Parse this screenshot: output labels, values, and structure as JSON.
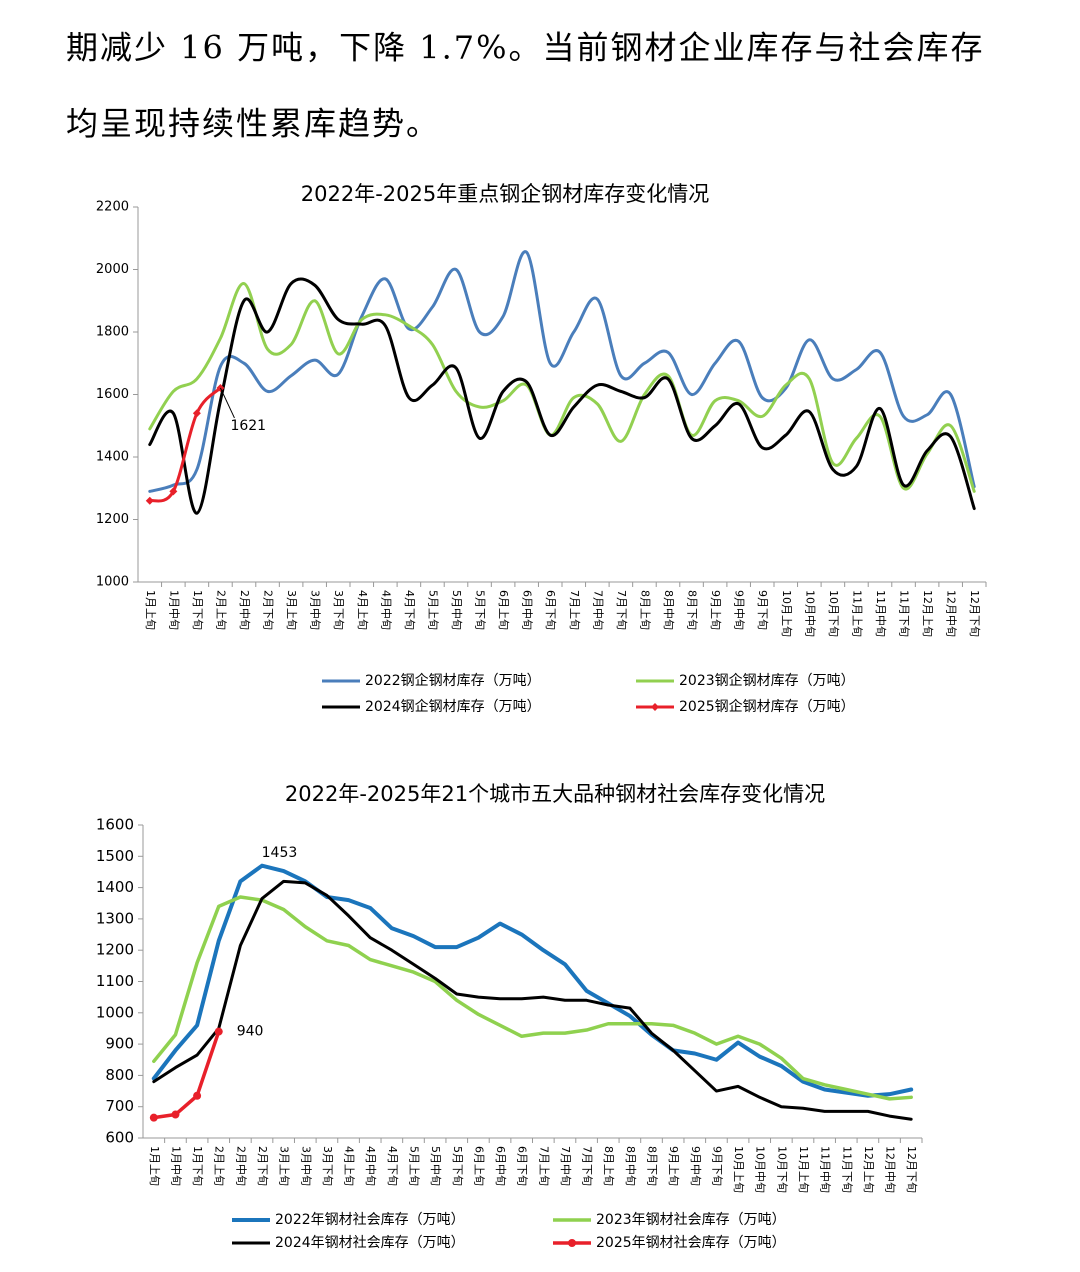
{
  "paragraph": [
    "期减少 16 万吨，下降 1.7%。当前钢材企业库存与社会库存",
    "均呈现持续性累库趋势。"
  ],
  "chart_data": [
    {
      "type": "line",
      "smooth": true,
      "title": "2022年-2025年重点钢企钢材库存变化情况",
      "categories": [
        "1月上旬",
        "1月中旬",
        "1月下旬",
        "2月上旬",
        "2月中旬",
        "2月下旬",
        "3月上旬",
        "3月中旬",
        "3月下旬",
        "4月上旬",
        "4月中旬",
        "4月下旬",
        "5月上旬",
        "5月中旬",
        "5月下旬",
        "6月上旬",
        "6月中旬",
        "6月下旬",
        "7月上旬",
        "7月中旬",
        "7月下旬",
        "8月上旬",
        "8月中旬",
        "8月下旬",
        "9月上旬",
        "9月中旬",
        "9月下旬",
        "10月上旬",
        "10月中旬",
        "10月下旬",
        "11月上旬",
        "11月中旬",
        "11月下旬",
        "12月上旬",
        "12月中旬",
        "12月下旬"
      ],
      "ylim": [
        1000,
        2200
      ],
      "yticks": [
        1000,
        1200,
        1400,
        1600,
        1800,
        2000,
        2200
      ],
      "annotations": [
        "1621"
      ],
      "series": [
        {
          "name": "2022钢企钢材库存（万吨）",
          "color": "#4a7ebb",
          "values": [
            1290,
            1310,
            1360,
            1690,
            1700,
            1610,
            1660,
            1710,
            1665,
            1850,
            1970,
            1810,
            1880,
            2000,
            1800,
            1850,
            2055,
            1700,
            1800,
            1905,
            1660,
            1700,
            1735,
            1600,
            1700,
            1770,
            1590,
            1620,
            1775,
            1650,
            1680,
            1735,
            1530,
            1535,
            1600,
            1305
          ]
        },
        {
          "name": "2023钢企钢材库存（万吨）",
          "color": "#92d050",
          "values": [
            1490,
            1610,
            1650,
            1780,
            1955,
            1745,
            1760,
            1900,
            1730,
            1840,
            1855,
            1820,
            1760,
            1610,
            1560,
            1580,
            1630,
            1470,
            1590,
            1570,
            1450,
            1600,
            1660,
            1470,
            1580,
            1580,
            1530,
            1630,
            1650,
            1380,
            1460,
            1530,
            1300,
            1410,
            1500,
            1290
          ]
        },
        {
          "name": "2024钢企钢材库存（万吨）",
          "color": "#000000",
          "values": [
            1440,
            1540,
            1220,
            1580,
            1900,
            1800,
            1955,
            1950,
            1840,
            1825,
            1820,
            1590,
            1630,
            1685,
            1460,
            1610,
            1640,
            1470,
            1560,
            1630,
            1610,
            1590,
            1650,
            1460,
            1500,
            1570,
            1430,
            1470,
            1545,
            1360,
            1370,
            1555,
            1310,
            1420,
            1465,
            1235
          ]
        },
        {
          "name": "2025钢企钢材库存（万吨）",
          "color": "#e8202a",
          "marker": "diamond",
          "values": [
            1260,
            1290,
            1540,
            1621,
            null,
            null,
            null,
            null,
            null,
            null,
            null,
            null,
            null,
            null,
            null,
            null,
            null,
            null,
            null,
            null,
            null,
            null,
            null,
            null,
            null,
            null,
            null,
            null,
            null,
            null,
            null,
            null,
            null,
            null,
            null,
            null
          ]
        }
      ]
    },
    {
      "type": "line",
      "smooth": false,
      "title": "2022年-2025年21个城市五大品种钢材社会库存变化情况",
      "categories": [
        "1月上旬",
        "1月中旬",
        "1月下旬",
        "2月上旬",
        "2月中旬",
        "2月下旬",
        "3月上旬",
        "3月中旬",
        "3月下旬",
        "4月上旬",
        "4月中旬",
        "4月下旬",
        "5月上旬",
        "5月中旬",
        "5月下旬",
        "6月上旬",
        "6月中旬",
        "6月下旬",
        "7月上旬",
        "7月中旬",
        "7月下旬",
        "8月上旬",
        "8月中旬",
        "8月下旬",
        "9月上旬",
        "9月中旬",
        "9月下旬",
        "10月上旬",
        "10月中旬",
        "10月下旬",
        "11月上旬",
        "11月中旬",
        "11月下旬",
        "12月上旬",
        "12月中旬",
        "12月下旬"
      ],
      "ylim": [
        600,
        1600
      ],
      "yticks": [
        600,
        700,
        800,
        900,
        1000,
        1100,
        1200,
        1300,
        1400,
        1500,
        1600
      ],
      "annotations": [
        "1453",
        "940"
      ],
      "series": [
        {
          "name": "2022年钢材社会库存（万吨）",
          "color": "#1b75bc",
          "values": [
            790,
            880,
            960,
            1230,
            1420,
            1470,
            1453,
            1420,
            1370,
            1360,
            1335,
            1270,
            1245,
            1210,
            1210,
            1240,
            1285,
            1250,
            1200,
            1155,
            1070,
            1030,
            990,
            930,
            880,
            870,
            850,
            905,
            860,
            830,
            780,
            755,
            745,
            735,
            740,
            755
          ]
        },
        {
          "name": "2023年钢材社会库存（万吨）",
          "color": "#8fd14f",
          "values": [
            845,
            930,
            1160,
            1340,
            1370,
            1360,
            1330,
            1275,
            1230,
            1215,
            1170,
            1150,
            1130,
            1100,
            1040,
            995,
            960,
            925,
            935,
            935,
            945,
            965,
            965,
            965,
            960,
            935,
            900,
            925,
            900,
            855,
            790,
            770,
            755,
            740,
            725,
            730
          ]
        },
        {
          "name": "2024年钢材社会库存（万吨）",
          "color": "#000000",
          "values": [
            780,
            825,
            865,
            950,
            1215,
            1365,
            1420,
            1415,
            1375,
            1310,
            1240,
            1200,
            1155,
            1110,
            1060,
            1050,
            1045,
            1045,
            1050,
            1040,
            1040,
            1025,
            1015,
            935,
            880,
            815,
            750,
            765,
            730,
            700,
            695,
            685,
            685,
            685,
            670,
            660
          ]
        },
        {
          "name": "2025年钢材社会库存（万吨）",
          "color": "#e8202a",
          "marker": "circle",
          "values": [
            665,
            675,
            735,
            940,
            null,
            null,
            null,
            null,
            null,
            null,
            null,
            null,
            null,
            null,
            null,
            null,
            null,
            null,
            null,
            null,
            null,
            null,
            null,
            null,
            null,
            null,
            null,
            null,
            null,
            null,
            null,
            null,
            null,
            null,
            null,
            null
          ]
        }
      ]
    }
  ]
}
